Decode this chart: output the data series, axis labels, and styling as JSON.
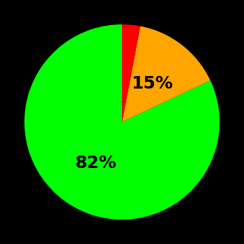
{
  "slices": [
    82,
    15,
    3
  ],
  "colors": [
    "#00ff00",
    "#ffa500",
    "#ff0000"
  ],
  "labels": [
    "82%",
    "15%",
    ""
  ],
  "background_color": "#000000",
  "label_fontsize": 18,
  "label_color": "#000000",
  "label_r": 0.5,
  "startangle": 90,
  "counterclock": true
}
